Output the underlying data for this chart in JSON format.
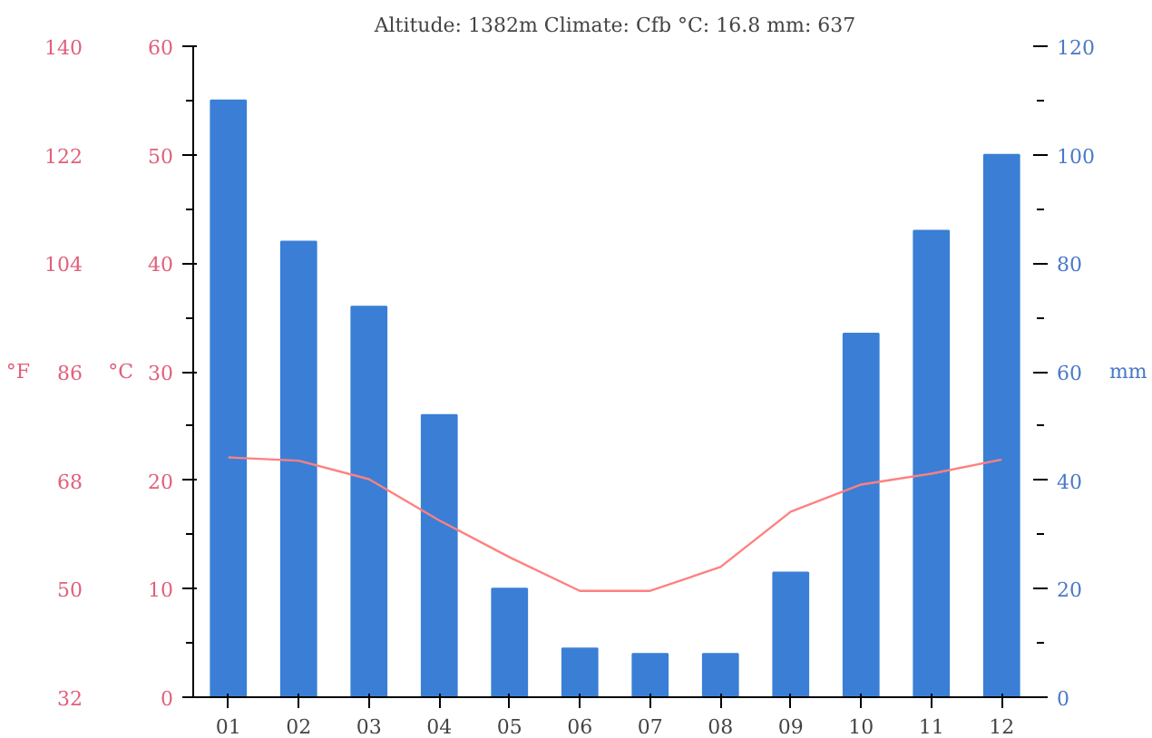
{
  "chart_data": {
    "type": "bar",
    "title": "Altitude: 1382m Climate: Cfb °C: 16.8 mm: 637",
    "categories": [
      "01",
      "02",
      "03",
      "04",
      "05",
      "06",
      "07",
      "08",
      "09",
      "10",
      "11",
      "12"
    ],
    "ylabel": "°C",
    "y2label": "mm",
    "y3label": "°F",
    "ylim": [
      0,
      60
    ],
    "yticks": [
      0,
      10,
      20,
      30,
      40,
      50,
      60
    ],
    "y2lim": [
      0,
      120
    ],
    "y2ticks": [
      0,
      20,
      40,
      60,
      80,
      100,
      120
    ],
    "y3lim": [
      32,
      140
    ],
    "y3ticks": [
      32,
      50,
      68,
      86,
      104,
      122,
      140
    ],
    "grid": false,
    "series": [
      {
        "axis": "y2",
        "color": "#3a7fd5",
        "values": [
          110,
          84,
          72,
          52,
          20,
          9,
          8,
          8,
          23,
          67,
          86,
          100
        ]
      },
      {
        "type": "line",
        "axis": "y",
        "color": "#ff8080",
        "marker": "none",
        "values": [
          22.1,
          21.8,
          20.1,
          16.3,
          12.9,
          9.8,
          9.8,
          12.0,
          17.1,
          19.6,
          20.6,
          21.9
        ]
      }
    ]
  }
}
